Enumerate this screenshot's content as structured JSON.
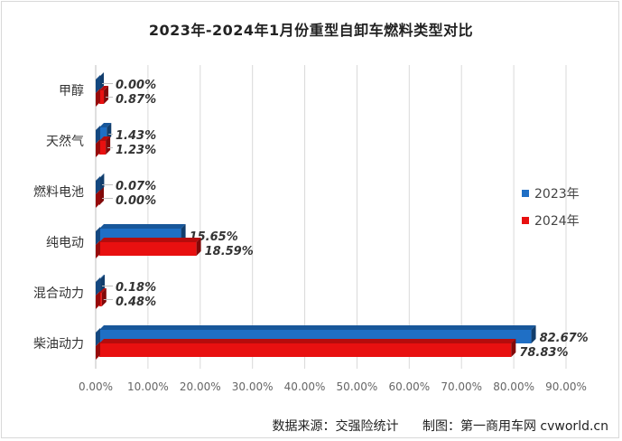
{
  "chart_data": {
    "type": "bar",
    "orientation": "horizontal",
    "title": "2023年-2024年1月份重型自卸车燃料类型对比",
    "categories": [
      "甲醇",
      "天然气",
      "燃料电池",
      "纯电动",
      "混合动力",
      "柴油动力"
    ],
    "series": [
      {
        "name": "2023年",
        "color": "#1f6fc5",
        "values": [
          0.0,
          1.43,
          0.07,
          15.65,
          0.18,
          82.67
        ],
        "labels": [
          "0.00%",
          "1.43%",
          "0.07%",
          "15.65%",
          "0.18%",
          "82.67%"
        ]
      },
      {
        "name": "2024年",
        "color": "#e81010",
        "values": [
          0.87,
          1.23,
          0.0,
          18.59,
          0.48,
          78.83
        ],
        "labels": [
          "0.87%",
          "1.23%",
          "0.00%",
          "18.59%",
          "0.48%",
          "78.83%"
        ]
      }
    ],
    "xlim": [
      0,
      90
    ],
    "xticks": [
      "0.00%",
      "10.00%",
      "20.00%",
      "30.00%",
      "40.00%",
      "50.00%",
      "60.00%",
      "70.00%",
      "80.00%",
      "90.00%"
    ],
    "grid": true,
    "legend_position": "right"
  },
  "source": {
    "data_source": "数据来源：交强险统计",
    "made_by": "制图：第一商用车网 cvworld.cn"
  }
}
